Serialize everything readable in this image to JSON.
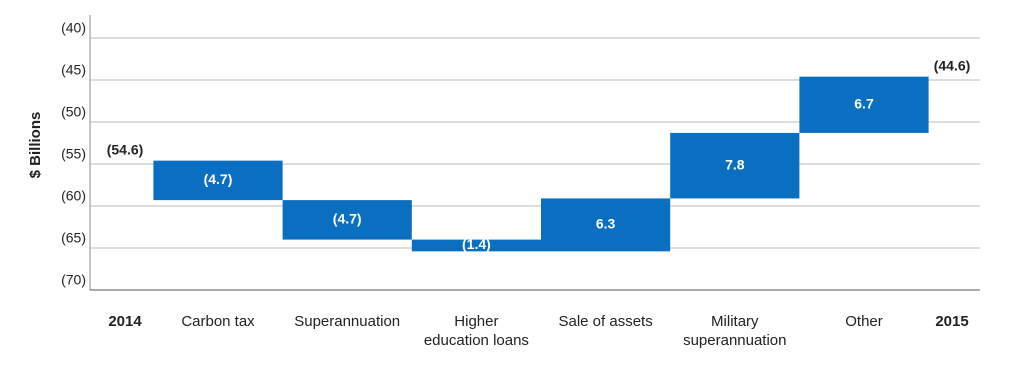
{
  "chart_data": {
    "type": "waterfall",
    "y_label": "$ Billions",
    "categories": [
      "2014",
      "Carbon tax",
      "Superannuation",
      "Higher education loans",
      "Sale of assets",
      "Military superannuation",
      "Other",
      "2015"
    ],
    "measure": [
      "total",
      "relative",
      "relative",
      "relative",
      "relative",
      "relative",
      "relative",
      "total"
    ],
    "values": [
      -54.6,
      -4.7,
      -4.7,
      -1.4,
      6.3,
      7.8,
      6.7,
      -44.6
    ],
    "value_labels": [
      "(54.6)",
      "(4.7)",
      "(4.7)",
      "(1.4)",
      "6.3",
      "7.8",
      "6.7",
      "(44.6)"
    ],
    "color": "#0b6fc1",
    "ylim": [
      -70,
      -40
    ],
    "yticks": [
      {
        "value": -40,
        "label": "(40)"
      },
      {
        "value": -45,
        "label": "(45)"
      },
      {
        "value": -50,
        "label": "(50)"
      },
      {
        "value": -55,
        "label": "(55)"
      },
      {
        "value": -60,
        "label": "(60)"
      },
      {
        "value": -65,
        "label": "(65)"
      },
      {
        "value": -70,
        "label": "(70)"
      }
    ],
    "grid": true
  }
}
